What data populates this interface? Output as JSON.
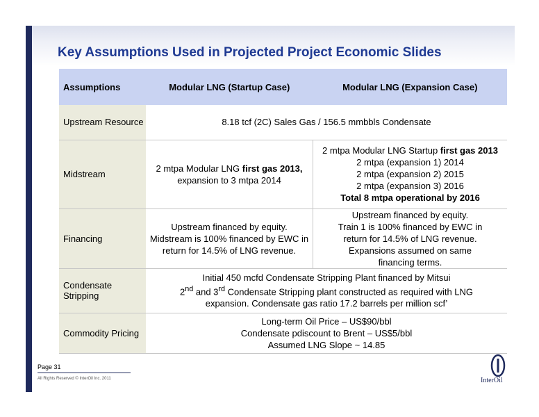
{
  "title": "Key Assumptions Used in Projected Project Economic Slides",
  "table": {
    "headers": [
      "Assumptions",
      "Modular LNG (Startup Case)",
      "Modular LNG (Expansion Case)"
    ],
    "upstream": {
      "label": "Upstream Resource",
      "value": "8.18 tcf  (2C) Sales Gas / 156.5 mmbbls Condensate"
    },
    "midstream": {
      "label": "Midstream",
      "startup_pre": "2 mtpa Modular LNG ",
      "startup_bold": "first gas 2013,",
      "startup_post": "expansion to 3 mtpa 2014",
      "exp_pre": "2 mtpa Modular LNG Startup ",
      "exp_bold": "first gas 2013",
      "exp_l1": "2 mtpa (expansion 1) 2014",
      "exp_l2": "2 mtpa (expansion 2) 2015",
      "exp_l3": "2 mtpa (expansion 3) 2016",
      "exp_total": "Total 8 mtpa operational by 2016"
    },
    "financing": {
      "label": "Financing",
      "startup_l1": "Upstream financed by equity.",
      "startup_l2": "Midstream is 100% financed by EWC in",
      "startup_l3": "return for 14.5% of LNG revenue.",
      "exp_l1": "Upstream financed by equity.",
      "exp_l2": "Train 1 is 100% financed by EWC in",
      "exp_l3": "return for 14.5% of LNG revenue.",
      "exp_l4": "Expansions assumed on same",
      "exp_l5": "financing terms."
    },
    "condensate": {
      "label": "Condensate Stripping",
      "l1": "Initial 450 mcfd Condensate Stripping  Plant financed by Mitsui",
      "l2_a": "2",
      "l2_sup1": "nd",
      "l2_b": " and 3",
      "l2_sup2": "rd",
      "l2_c": " Condensate Stripping plant constructed as required with LNG",
      "l3": "expansion.  Condensate gas ratio 17.2 barrels per million scf’"
    },
    "commodity": {
      "label": "Commodity Pricing",
      "l1": "Long-term Oil Price – US$90/bbl",
      "l2": "Condensate pdiscount to Brent – US$5/bbl",
      "l3": "Assumed LNG Slope ~ 14.85"
    }
  },
  "footer": {
    "page": "Page 31",
    "copyright": "All Rights Reserved © InterOil Inc. 2011"
  },
  "logo": {
    "text": "InterOil"
  },
  "colors": {
    "title": "#1f3a93",
    "header_bg": "#c9d3f2",
    "label_bg": "#ebebdd",
    "bar": "#1f2a5c"
  }
}
